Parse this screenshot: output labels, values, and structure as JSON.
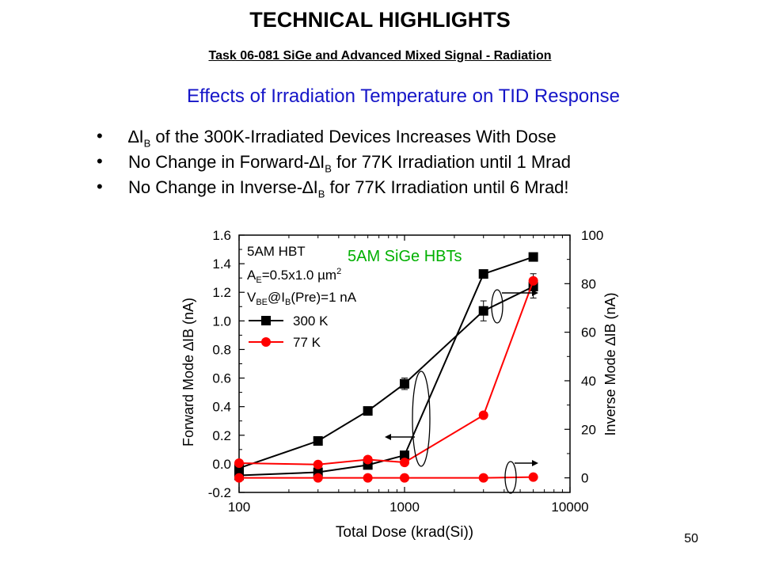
{
  "slide": {
    "title": "TECHNICAL HIGHLIGHTS",
    "subtitle": "Task 06-081 SiGe and Advanced Mixed Signal - Radiation",
    "heading": "Effects of Irradiation Temperature on TID Response",
    "bullets": [
      [
        "∆I",
        "B",
        " of the 300K-Irradiated Devices Increases With Dose"
      ],
      [
        "No Change in Forward-∆I",
        "B",
        " for 77K Irradiation until 1 Mrad"
      ],
      [
        "No Change in Inverse-∆I",
        "B",
        "  for 77K Irradiation until 6 Mrad!"
      ]
    ],
    "page_number": "50"
  },
  "colors": {
    "heading": "#1515c8",
    "series_300K": "#000000",
    "series_77K": "#ff0000",
    "inset_title": "#00b000"
  },
  "chart_data": {
    "type": "line",
    "title": "5AM SiGe HBTs",
    "xlabel": "Total Dose (krad(Si))",
    "ylabel_left": "Forward Mode ∆I_B (nA)",
    "ylabel_right": "Inverse Mode ∆I_B (nA)",
    "x_scale": "log",
    "xlim": [
      100,
      10000
    ],
    "x_ticks": [
      "100",
      "1000",
      "10000"
    ],
    "ylim_left": [
      -0.2,
      1.6
    ],
    "y_ticks_left": [
      "-0.2",
      "0.0",
      "0.2",
      "0.4",
      "0.6",
      "0.8",
      "1.0",
      "1.2",
      "1.4",
      "1.6"
    ],
    "ylim_right": [
      -6,
      100
    ],
    "y_ticks_right": [
      "0",
      "20",
      "40",
      "60",
      "80",
      "100"
    ],
    "annotation": [
      "5AM HBT",
      "A_E=0.5x1.0 µm^2",
      "V_BE@I_B(Pre)=1 nA"
    ],
    "legend": [
      "300 K",
      "77 K"
    ],
    "series": [
      {
        "name": "300 K",
        "axis": "forward",
        "x": [
          100,
          300,
          600,
          1000,
          3000,
          6000
        ],
        "y": [
          -0.03,
          0.16,
          0.37,
          0.56,
          1.07,
          1.24
        ]
      },
      {
        "name": "300 K",
        "axis": "inverse",
        "x": [
          100,
          300,
          600,
          1000,
          3000,
          6000
        ],
        "y": [
          1,
          2.3,
          5.3,
          9.3,
          84,
          91
        ]
      },
      {
        "name": "77 K",
        "axis": "forward",
        "x": [
          100,
          300,
          600,
          1000,
          3000,
          6000
        ],
        "y": [
          0.005,
          -0.005,
          0.03,
          0.01,
          0.34,
          1.28
        ]
      },
      {
        "name": "77 K",
        "axis": "inverse",
        "x": [
          100,
          300,
          600,
          1000,
          3000,
          6000
        ],
        "y": [
          0,
          0,
          0,
          0,
          0,
          0.3
        ]
      }
    ]
  }
}
